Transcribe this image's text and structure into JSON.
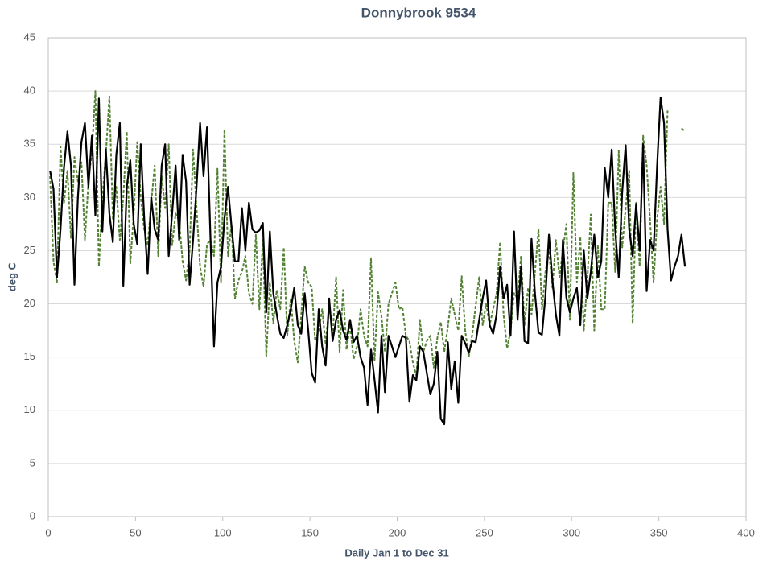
{
  "chart_data": {
    "type": "line",
    "title": "Donnybrook 9534",
    "x_label": "Daily Jan 1 to Dec 31",
    "y_label": "deg C",
    "xlim": [
      0,
      400
    ],
    "xticks": [
      0,
      50,
      100,
      150,
      200,
      250,
      300,
      350,
      400
    ],
    "ylim": [
      0,
      45
    ],
    "yticks": [
      0,
      5,
      10,
      15,
      20,
      25,
      30,
      35,
      40,
      45
    ],
    "grid": true,
    "x": [
      1,
      3,
      5,
      7,
      9,
      11,
      13,
      15,
      17,
      19,
      21,
      23,
      25,
      27,
      29,
      31,
      33,
      35,
      37,
      39,
      41,
      43,
      45,
      47,
      49,
      51,
      53,
      55,
      57,
      59,
      61,
      63,
      65,
      67,
      69,
      71,
      73,
      75,
      77,
      79,
      81,
      83,
      85,
      87,
      89,
      91,
      93,
      95,
      97,
      99,
      101,
      103,
      105,
      107,
      109,
      111,
      113,
      115,
      117,
      119,
      121,
      123,
      125,
      127,
      129,
      131,
      133,
      135,
      137,
      139,
      141,
      143,
      145,
      147,
      149,
      151,
      153,
      155,
      157,
      159,
      161,
      163,
      165,
      167,
      169,
      171,
      173,
      175,
      177,
      179,
      181,
      183,
      185,
      187,
      189,
      191,
      193,
      195,
      197,
      199,
      201,
      203,
      205,
      207,
      209,
      211,
      213,
      215,
      217,
      219,
      221,
      223,
      225,
      227,
      229,
      231,
      233,
      235,
      237,
      239,
      241,
      243,
      245,
      247,
      249,
      251,
      253,
      255,
      257,
      259,
      261,
      263,
      265,
      267,
      269,
      271,
      273,
      275,
      277,
      279,
      281,
      283,
      285,
      287,
      289,
      291,
      293,
      295,
      297,
      299,
      301,
      303,
      305,
      307,
      309,
      311,
      313,
      315,
      317,
      319,
      321,
      323,
      325,
      327,
      329,
      331,
      333,
      335,
      337,
      339,
      341,
      343,
      345,
      347,
      349,
      351,
      353,
      355,
      357,
      359,
      361,
      363,
      365
    ],
    "series": [
      {
        "color": "#000000",
        "dashed": false,
        "values": [
          32.5,
          30.8,
          22.5,
          27,
          32.8,
          36.2,
          33,
          21.8,
          30,
          35.2,
          37,
          31,
          35.8,
          28.3,
          39.3,
          26.8,
          34.5,
          28.5,
          25.8,
          34,
          37,
          21.7,
          31,
          33.5,
          27.5,
          25.6,
          35,
          28,
          22.8,
          30,
          27,
          26,
          33,
          35,
          24.5,
          28.5,
          33,
          26,
          34,
          31.5,
          21.8,
          26,
          31,
          37,
          32,
          36.6,
          26,
          16,
          22,
          23.5,
          28,
          31,
          27.3,
          24,
          24,
          29,
          25,
          29.5,
          27,
          26.7,
          26.9,
          27.6,
          19.2,
          26.8,
          21,
          19,
          17.2,
          16.8,
          18,
          19.5,
          21.5,
          18,
          17.2,
          21,
          17.5,
          13.5,
          12.6,
          19.5,
          16,
          14.2,
          20.5,
          16.5,
          18.5,
          19.4,
          17.5,
          16.6,
          18.5,
          16.4,
          17,
          15,
          14,
          10.5,
          15.7,
          12.9,
          9.8,
          17,
          11.7,
          17,
          16,
          15,
          16,
          17,
          16.8,
          10.8,
          13.3,
          12.8,
          16,
          15.5,
          13.5,
          11.5,
          12.5,
          15.5,
          9.2,
          8.7,
          16.4,
          12,
          14.6,
          10.7,
          17,
          16.3,
          15.4,
          16.5,
          16.4,
          18.5,
          20.5,
          22.2,
          18,
          17.2,
          19,
          23.5,
          20.5,
          21.8,
          17,
          26.8,
          18.5,
          23.5,
          16.5,
          16.3,
          26.1,
          21,
          17.3,
          17.1,
          20.7,
          26.5,
          22.2,
          19,
          17,
          26,
          20.6,
          19.2,
          20.5,
          21.5,
          18,
          25,
          20.5,
          23,
          26.5,
          22.5,
          24,
          32.8,
          30,
          34.5,
          27,
          22.5,
          30.5,
          34.9,
          27,
          24.5,
          29.4,
          25,
          35,
          21.2,
          26,
          25,
          33,
          39.4,
          37,
          27,
          22.2,
          23.5,
          24.5,
          26.5,
          23.5
        ]
      },
      {
        "color": "#548235",
        "dashed": true,
        "values": [
          32,
          24,
          22,
          34.8,
          29.5,
          32.5,
          26.2,
          33.8,
          31.5,
          33.3,
          26,
          31.5,
          34.3,
          40,
          23.5,
          30,
          34,
          39.5,
          28,
          31,
          26,
          30,
          36.2,
          23.8,
          28.5,
          35.2,
          30,
          27,
          25.5,
          29.5,
          33,
          24.5,
          32,
          29,
          35,
          25.5,
          28.5,
          27.8,
          24,
          22.2,
          25,
          34.5,
          29,
          23.5,
          21.6,
          25.6,
          26,
          24.5,
          32.7,
          22,
          36.4,
          24.5,
          27.5,
          20.5,
          22.2,
          23,
          24.5,
          21,
          20,
          26.5,
          19.5,
          26,
          15.1,
          22,
          18.2,
          21.3,
          19.5,
          25.3,
          17,
          20.5,
          16.5,
          14.5,
          19,
          23.5,
          22,
          21.6,
          16.5,
          17.5,
          19.5,
          16.2,
          20,
          17,
          22.5,
          15.5,
          21.3,
          15.7,
          18,
          14.8,
          16,
          19.5,
          17,
          16,
          24.3,
          14.6,
          21.1,
          18.8,
          15.5,
          20,
          21,
          22,
          19.5,
          19.7,
          17,
          16.5,
          14.5,
          13.2,
          18.5,
          15.5,
          16.5,
          17,
          14,
          16.8,
          18.3,
          15.5,
          17.8,
          20.5,
          19,
          17.5,
          22.6,
          17.5,
          15,
          17.1,
          19.8,
          22.5,
          18,
          20,
          18,
          19.5,
          21,
          25.8,
          19,
          15.8,
          17.5,
          21,
          20.5,
          24.5,
          18,
          21.5,
          19,
          23,
          27,
          19.5,
          23,
          25,
          21.5,
          26,
          22.5,
          25,
          27.5,
          18.5,
          32.3,
          22,
          26.3,
          17.5,
          22.3,
          28.4,
          17.5,
          25.5,
          19.5,
          19.5,
          29.5,
          29.5,
          23,
          34.4,
          25.3,
          29,
          32.5,
          18.2,
          29.5,
          23.5,
          35.8,
          33,
          27.8,
          22,
          28,
          31,
          27.5,
          38.3,
          null,
          null,
          null,
          36.5,
          36.2
        ]
      }
    ]
  }
}
